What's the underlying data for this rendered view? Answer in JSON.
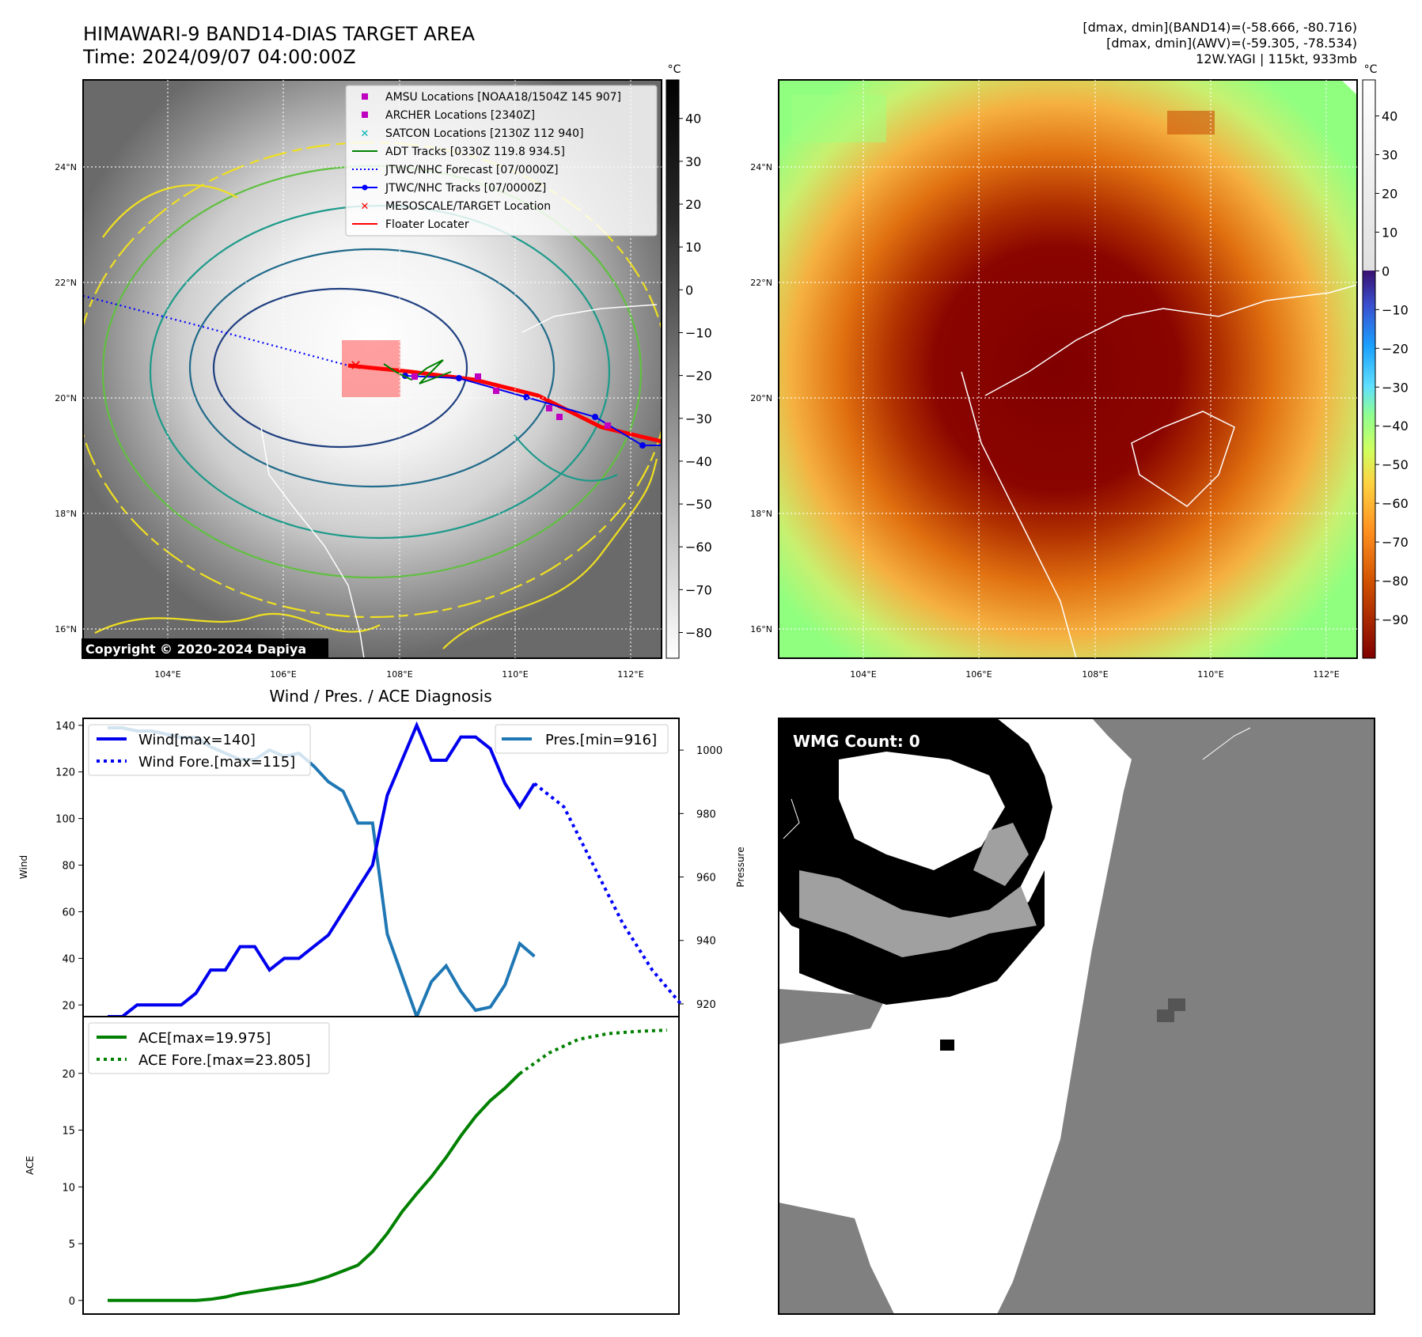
{
  "header": {
    "title": "HIMAWARI-9 BAND14-DIAS TARGET AREA",
    "time": "Time: 2024/09/07 04:00:00Z",
    "stats_band14": "[dmax, dmin](BAND14)=(-58.666, -80.716)",
    "stats_awv": "[dmax, dmin](AWV)=(-59.305, -78.534)",
    "storm": "12W.YAGI | 115kt, 933mb"
  },
  "colors": {
    "wind": "#0000ee",
    "pressure": "#1f77b4",
    "ace": "#008000",
    "track_red": "#ff0000",
    "forecast_blue": "#0000ff",
    "wmg_gray": "#808080",
    "wmg_light": "#a0a0a0"
  },
  "map_axes": {
    "lat_ticks": [
      "24°N",
      "22°N",
      "20°N",
      "18°N",
      "16°N"
    ],
    "lon_ticks": [
      "104°E",
      "106°E",
      "108°E",
      "110°E",
      "112°E"
    ],
    "unit": "°C"
  },
  "ir_panel": {
    "colorbar_ticks": [
      "40",
      "30",
      "20",
      "10",
      "0",
      "−10",
      "−20",
      "−30",
      "−40",
      "−50",
      "−60",
      "−70",
      "−80"
    ],
    "copyright": "Copyright © 2020-2024 Dapiya",
    "legend": [
      {
        "icon": "square-marker-icon",
        "color": "#c000c0",
        "label": "AMSU Locations [NOAA18/1504Z 145 907]"
      },
      {
        "icon": "square-marker-icon",
        "color": "#c000c0",
        "label": "ARCHER Locations [2340Z]"
      },
      {
        "icon": "x-marker-icon",
        "color": "#00b0b0",
        "label": "SATCON Locations [2130Z 112 940]"
      },
      {
        "icon": "line-icon",
        "color": "#008000",
        "label": "ADT Tracks [0330Z 119.8 934.5]"
      },
      {
        "icon": "dotted-line-icon",
        "color": "#0000ff",
        "label": "JTWC/NHC Forecast [07/0000Z]"
      },
      {
        "icon": "line-dot-icon",
        "color": "#0000ff",
        "label": "JTWC/NHC Tracks [07/0000Z]"
      },
      {
        "icon": "x-marker-icon",
        "color": "#ff0000",
        "label": "MESOSCALE/TARGET Location"
      },
      {
        "icon": "line-icon",
        "color": "#ff0000",
        "label": "Floater Locater"
      }
    ]
  },
  "awv_panel": {
    "colorbar_ticks": [
      "40",
      "30",
      "20",
      "10",
      "0",
      "−10",
      "−20",
      "−30",
      "−40",
      "−50",
      "−60",
      "−70",
      "−80",
      "−90"
    ]
  },
  "wmg_panel": {
    "label": "WMG Count: 0"
  },
  "chart_data": [
    {
      "type": "line",
      "title": "Wind / Pres. / ACE Diagnosis",
      "ylabel": "Wind",
      "y2label": "Pressure",
      "ylim": [
        15,
        143
      ],
      "y2lim": [
        916,
        1010
      ],
      "yticks": [
        20,
        40,
        60,
        80,
        100,
        120,
        140
      ],
      "y2ticks": [
        920,
        940,
        960,
        980,
        1000
      ],
      "series": [
        {
          "name": "Wind[max=140]",
          "style": "solid",
          "values": [
            15,
            15,
            20,
            20,
            20,
            20,
            25,
            35,
            35,
            45,
            45,
            35,
            40,
            40,
            45,
            50,
            60,
            70,
            80,
            110,
            125,
            140,
            125,
            125,
            135,
            135,
            130,
            115,
            105,
            115
          ]
        },
        {
          "name": "Wind Fore.[max=115]",
          "style": "dotted",
          "x": [
            29,
            31,
            33,
            35,
            37,
            39
          ],
          "values": [
            115,
            105,
            80,
            55,
            35,
            20
          ]
        },
        {
          "name": "Pres.[min=916]",
          "axis": "right",
          "style": "solid",
          "values": [
            1007,
            1007,
            1006,
            1006,
            1005,
            1004,
            1004,
            1001,
            999,
            997,
            997,
            1000,
            998,
            999,
            995,
            990,
            987,
            977,
            977,
            942,
            929,
            916,
            927,
            932,
            924,
            918,
            919,
            926,
            939,
            935
          ]
        }
      ]
    },
    {
      "type": "line",
      "ylabel": "ACE",
      "ylim": [
        -1.2,
        25
      ],
      "yticks": [
        0,
        5,
        10,
        15,
        20
      ],
      "series": [
        {
          "name": "ACE[max=19.975]",
          "style": "solid",
          "values": [
            0,
            0,
            0,
            0,
            0,
            0,
            0,
            0.1,
            0.3,
            0.6,
            0.8,
            1.0,
            1.2,
            1.4,
            1.7,
            2.1,
            2.6,
            3.1,
            4.3,
            5.9,
            7.8,
            9.4,
            10.9,
            12.6,
            14.5,
            16.2,
            17.6,
            18.7,
            19.975
          ]
        },
        {
          "name": "ACE Fore.[max=23.805]",
          "style": "dotted",
          "x": [
            28,
            30,
            32,
            34,
            36,
            38
          ],
          "values": [
            19.975,
            21.8,
            23.0,
            23.5,
            23.7,
            23.805
          ]
        }
      ]
    }
  ]
}
